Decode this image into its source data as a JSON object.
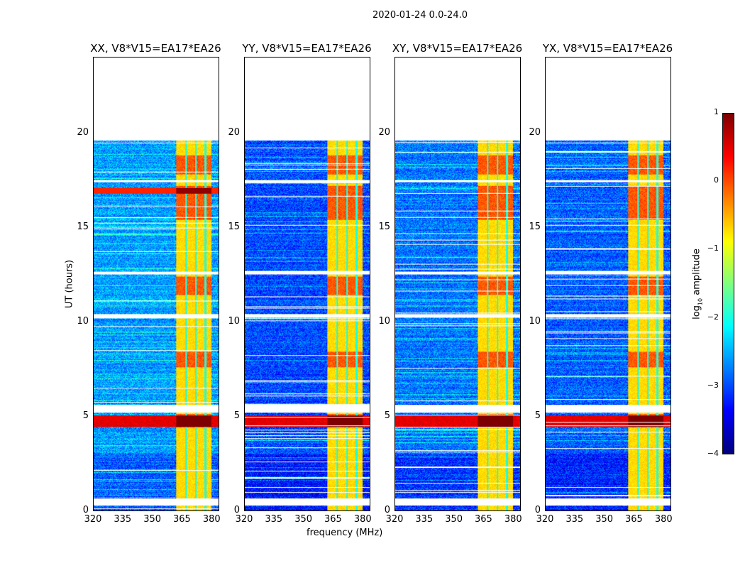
{
  "chart_data": {
    "type": "heatmap",
    "title": "2020-01-24 0.0-24.0",
    "xlabel": "frequency (MHz)",
    "ylabel": "UT (hours)",
    "xlim": [
      320,
      383.5
    ],
    "ylim": [
      0,
      24
    ],
    "xticks": [
      "320",
      "335",
      "350",
      "365",
      "380"
    ],
    "xtick_values": [
      320,
      335,
      350,
      365,
      380
    ],
    "yticks": [
      "0",
      "5",
      "10",
      "15",
      "20"
    ],
    "ytick_values": [
      0,
      5,
      10,
      15,
      20
    ],
    "panels": [
      {
        "title": "XX, V8*V15=EA17*EA26",
        "background_level": -2.6,
        "extra_hot_band": [
          16.8,
          17.1
        ]
      },
      {
        "title": "YY, V8*V15=EA17*EA26",
        "background_level": -3.0,
        "extra_hot_band": null
      },
      {
        "title": "XY, V8*V15=EA17*EA26",
        "background_level": -2.8,
        "extra_hot_band": null
      },
      {
        "title": "YX, V8*V15=EA17*EA26",
        "background_level": -2.9,
        "extra_hot_band": null
      }
    ],
    "data_time_range": [
      0,
      19.6
    ],
    "gaps_hours": [
      [
        0.25,
        0.65
      ],
      [
        5.2,
        5.6
      ],
      [
        10.2,
        10.4
      ],
      [
        12.5,
        12.65
      ],
      [
        17.4,
        17.5
      ]
    ],
    "rfi_band_mhz": [
      362,
      380
    ],
    "rfi_subband_edges_mhz": [
      367,
      372,
      377
    ],
    "rfi_level": -0.7,
    "rfi_strong_times": [
      [
        7.6,
        8.4
      ],
      [
        11.4,
        12.4
      ],
      [
        15.4,
        17.2
      ],
      [
        17.8,
        18.8
      ],
      [
        4.4,
        5.1
      ]
    ],
    "hot_band_hours": [
      4.45,
      5.05
    ],
    "hot_band_level": 0.5,
    "colorbar": {
      "label": "log10 amplitude",
      "label_main": "log",
      "label_sub": "10",
      "label_rest": " amplitude",
      "range": [
        -4,
        1
      ],
      "ticks": [
        "1",
        "0",
        "−1",
        "−2",
        "−3",
        "−4"
      ],
      "tick_values": [
        1,
        0,
        -1,
        -2,
        -3,
        -4
      ],
      "colormap": "jet"
    }
  }
}
